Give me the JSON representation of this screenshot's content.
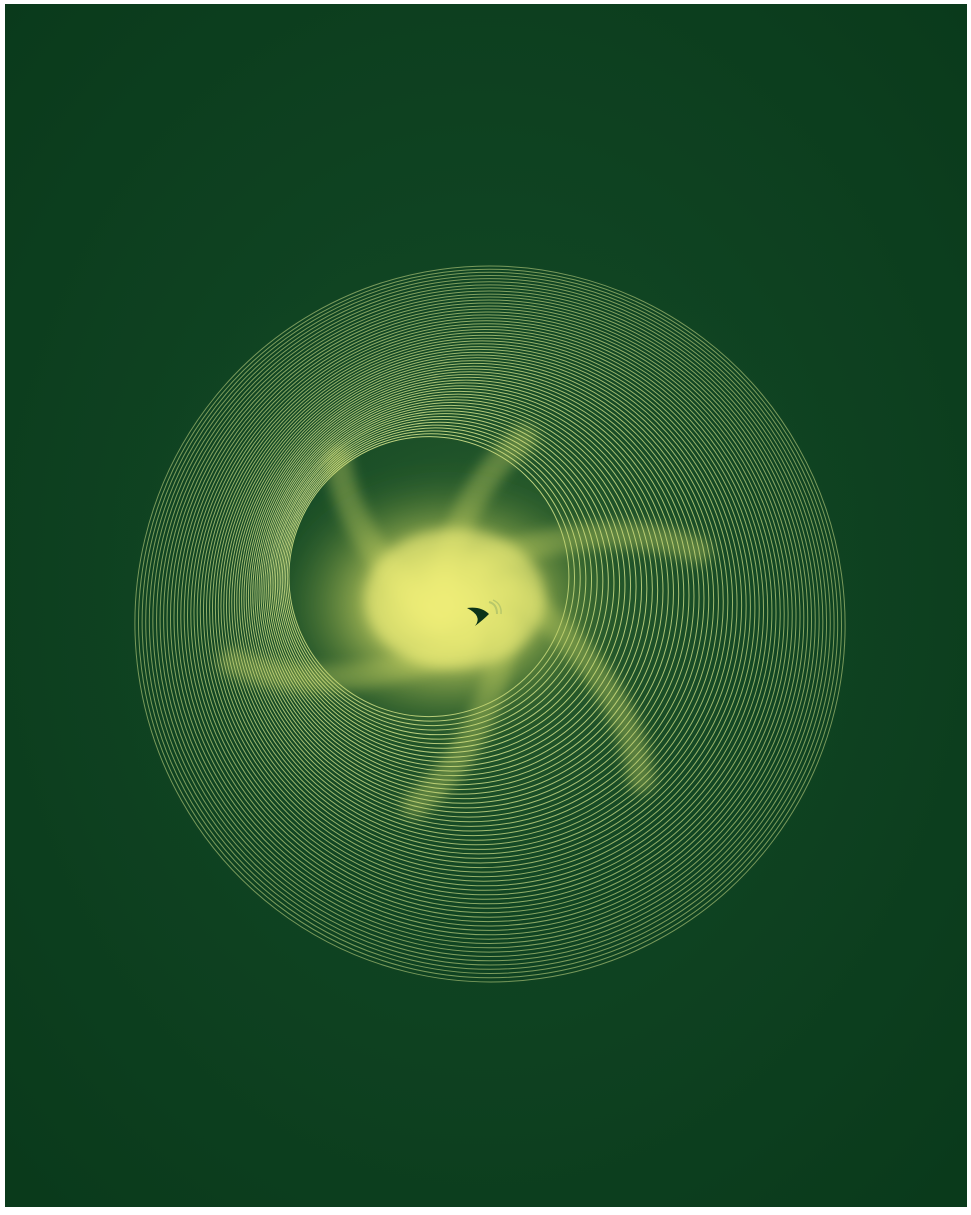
{
  "artwork": {
    "kind": "spiral line art",
    "colors": {
      "background": "#0d4220",
      "background_edge": "#0a3a1b",
      "line": "#cfe08a",
      "glow_core": "#f4f27a",
      "glow_mid": "#d8df6a",
      "glow_outer": "#9fb44a",
      "center_mark": "#0b3318",
      "center_accent": "#b8c86a"
    },
    "ring_count": 60,
    "feather_count": 6,
    "icons": [
      "center-swirl-mark-icon"
    ]
  }
}
